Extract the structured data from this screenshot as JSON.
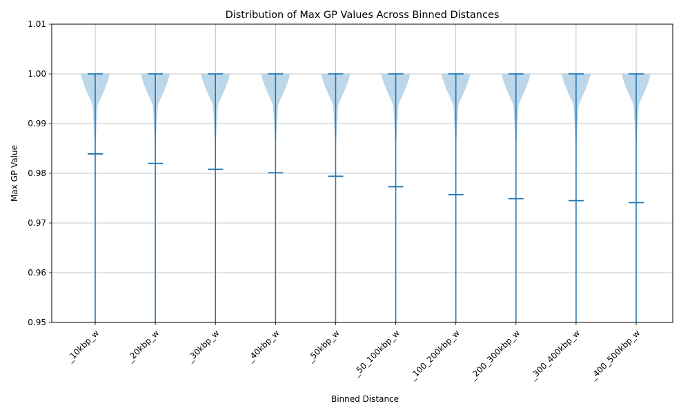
{
  "chart_data": {
    "type": "violin",
    "title": "Distribution of Max GP Values Across Binned Distances",
    "xlabel": "Binned Distance",
    "ylabel": "Max GP Value",
    "ylim": [
      0.95,
      1.01
    ],
    "yticks": [
      "0.95",
      "0.96",
      "0.97",
      "0.98",
      "0.99",
      "1.00",
      "1.01"
    ],
    "grid": true,
    "color": "#1f77b4",
    "fill_color": "#bcd6ea",
    "categories": [
      "_10kbp_w",
      "_20kbp_w",
      "_30kbp_w",
      "_40kbp_w",
      "_50kbp_w",
      "_50_100kbp_w",
      "_100_200kbp_w",
      "_200_300kbp_w",
      "_300_400kbp_w",
      "_400_500kbp_w"
    ],
    "max": [
      1.0,
      1.0,
      1.0,
      1.0,
      1.0,
      1.0,
      1.0,
      1.0,
      1.0,
      1.0
    ],
    "mean": [
      0.9839,
      0.982,
      0.9808,
      0.9801,
      0.9794,
      0.9773,
      0.9757,
      0.9749,
      0.9745,
      0.9741
    ]
  }
}
